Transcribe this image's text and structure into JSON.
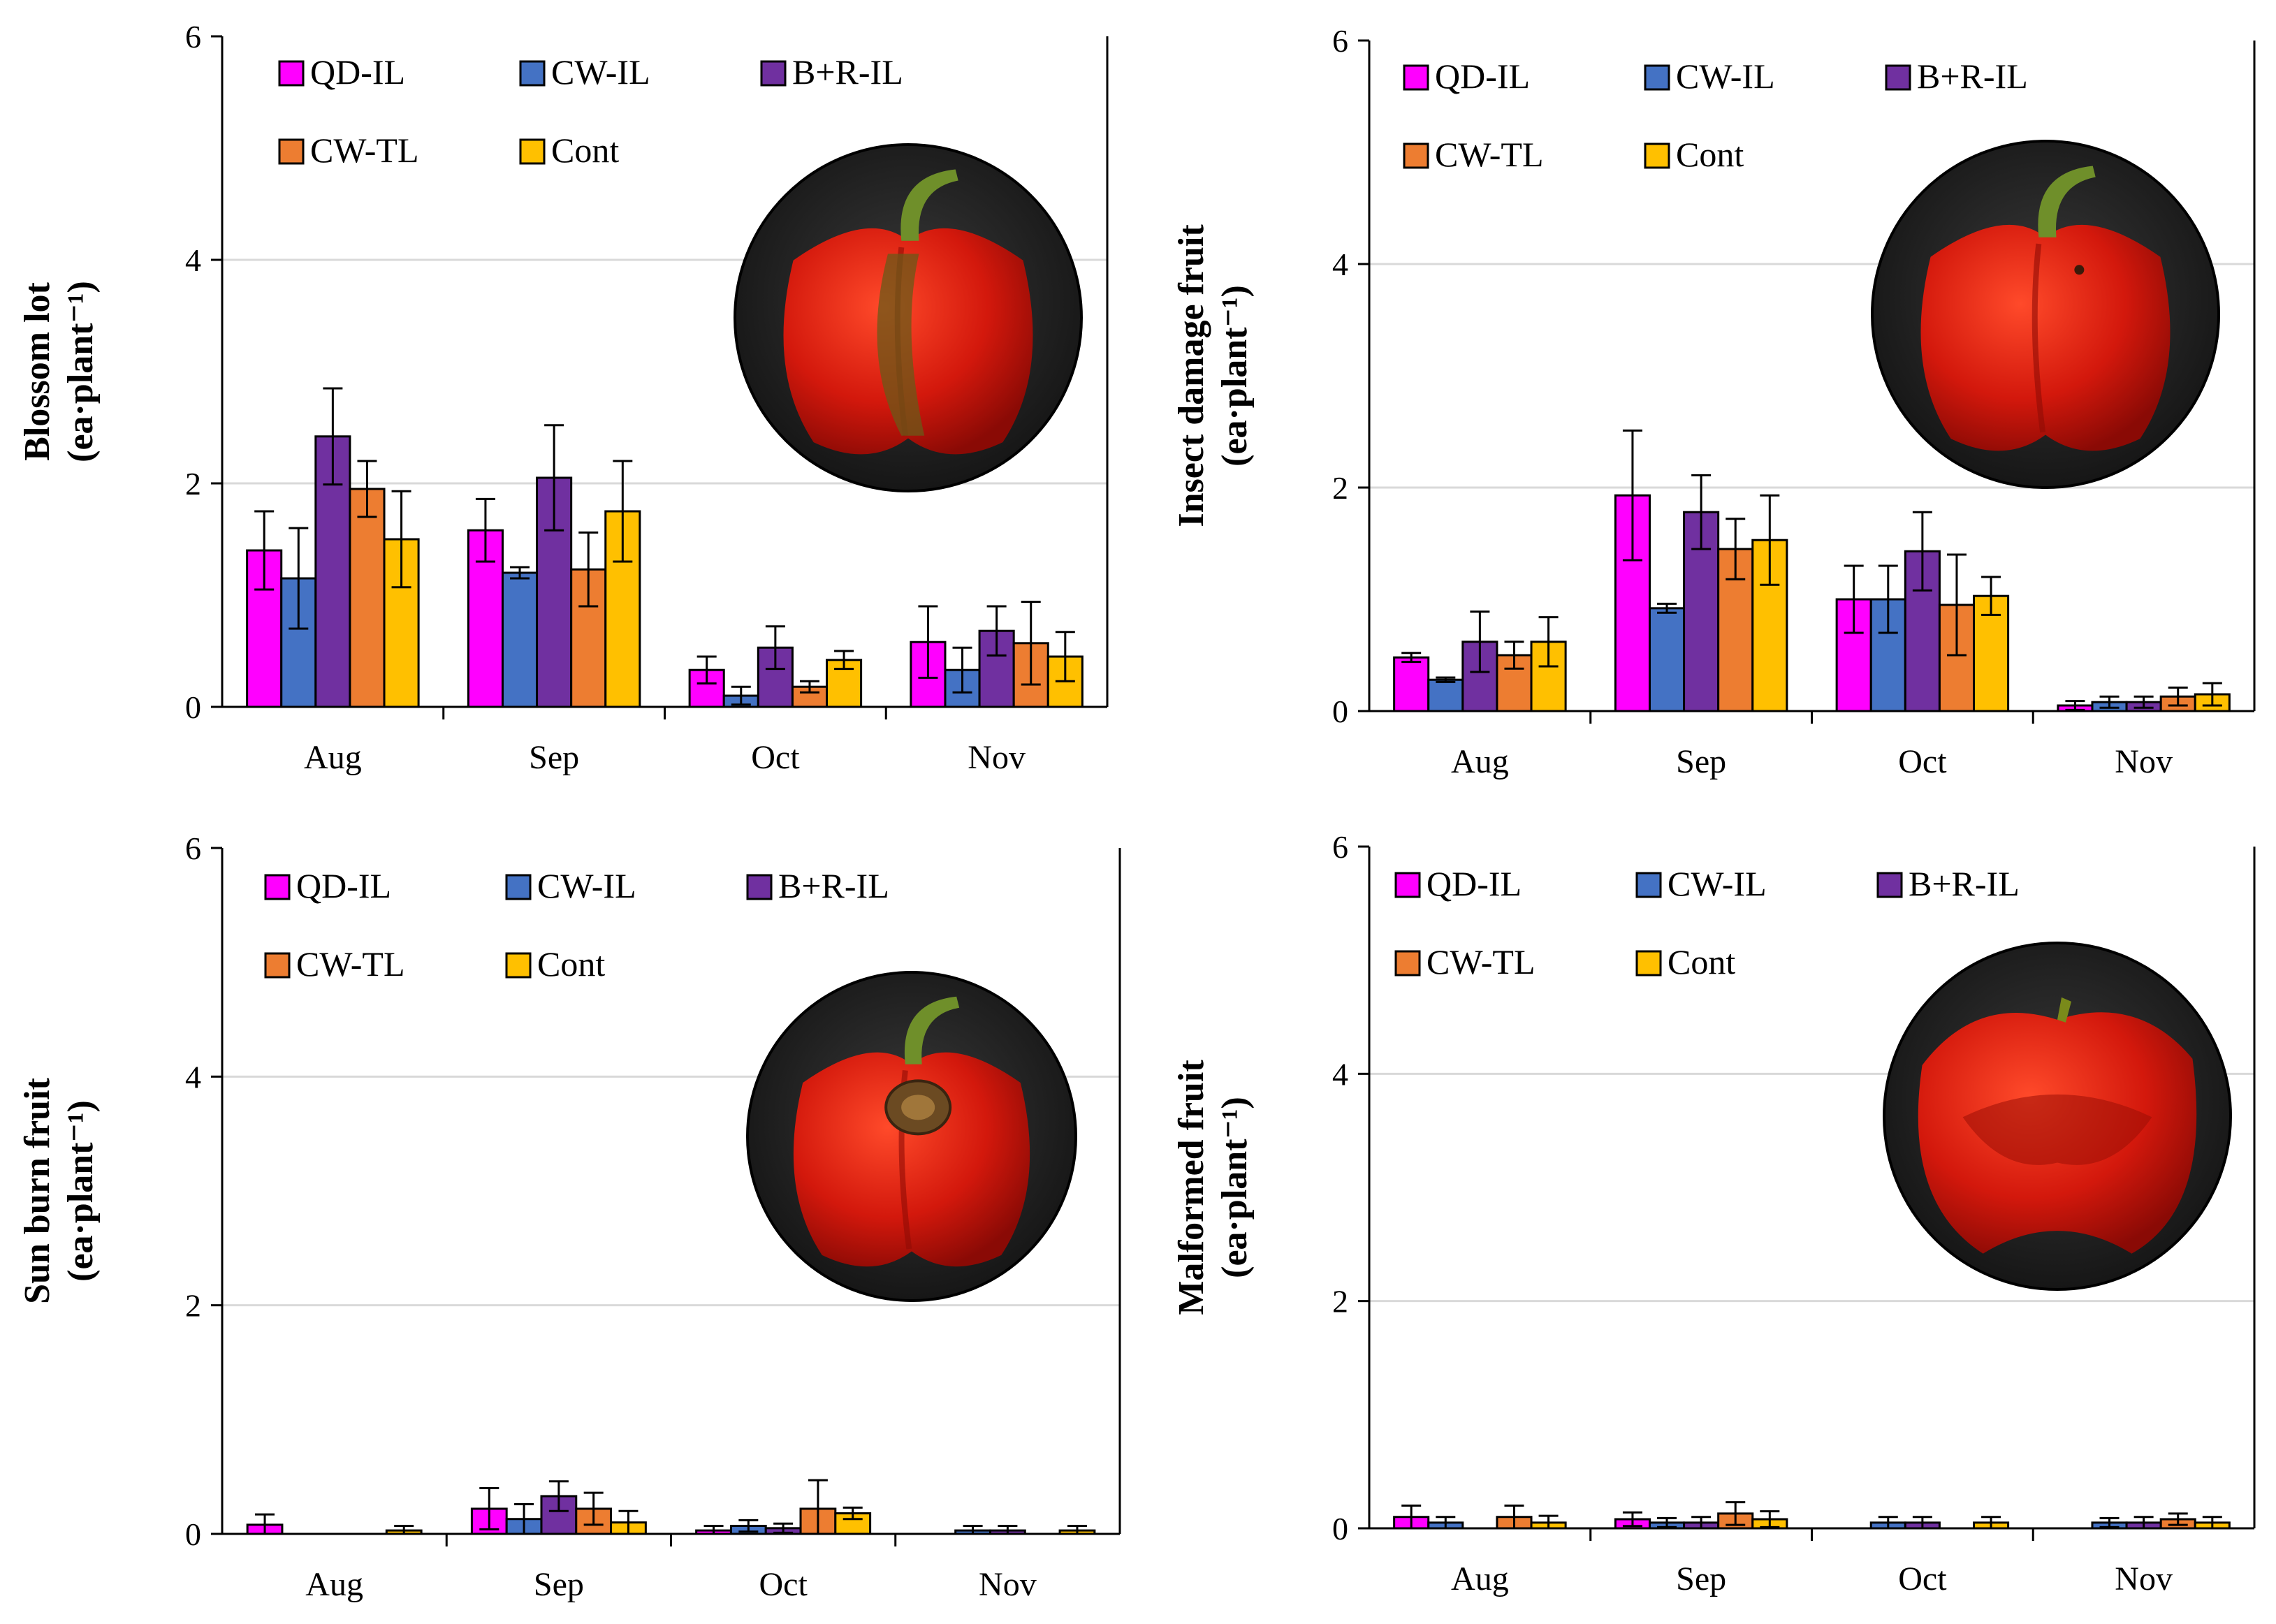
{
  "figure": {
    "legend_order": [
      "QD-IL",
      "CW-IL",
      "B+R-IL",
      "CW-TL",
      "Cont"
    ],
    "series_colors": {
      "QD-IL": "#FF00FF",
      "CW-IL": "#4472C4",
      "B+R-IL": "#7030A0",
      "CW-TL": "#ED7D31",
      "Cont": "#FFC000"
    },
    "image_icon": "red-bell-pepper-photo"
  },
  "chart_data": [
    {
      "type": "bar",
      "title": "",
      "xlabel": "",
      "ylabel_line1": "Blossom lot",
      "ylabel_line2": "(ea·plant⁻¹)",
      "ylim": [
        0,
        6
      ],
      "yticks": [
        "0",
        "2",
        "4",
        "6"
      ],
      "categories": [
        "Aug",
        "Sep",
        "Oct",
        "Nov"
      ],
      "legend": "top-left",
      "series": [
        {
          "name": "QD-IL",
          "values": [
            1.4,
            1.58,
            0.33,
            0.58
          ],
          "errors": [
            0.35,
            0.28,
            0.12,
            0.32
          ]
        },
        {
          "name": "CW-IL",
          "values": [
            1.15,
            1.2,
            0.1,
            0.33
          ],
          "errors": [
            0.45,
            0.05,
            0.08,
            0.2
          ]
        },
        {
          "name": "B+R-IL",
          "values": [
            2.42,
            2.05,
            0.53,
            0.68
          ],
          "errors": [
            0.43,
            0.47,
            0.19,
            0.22
          ]
        },
        {
          "name": "CW-TL",
          "values": [
            1.95,
            1.23,
            0.18,
            0.57
          ],
          "errors": [
            0.25,
            0.33,
            0.05,
            0.37
          ]
        },
        {
          "name": "Cont",
          "values": [
            1.5,
            1.75,
            0.42,
            0.45
          ],
          "errors": [
            0.43,
            0.45,
            0.08,
            0.22
          ]
        }
      ]
    },
    {
      "type": "bar",
      "title": "",
      "xlabel": "",
      "ylabel_line1": "Insect damage fruit",
      "ylabel_line2": "(ea·plant⁻¹)",
      "ylim": [
        0,
        6
      ],
      "yticks": [
        "0",
        "2",
        "4",
        "6"
      ],
      "categories": [
        "Aug",
        "Sep",
        "Oct",
        "Nov"
      ],
      "legend": "top-left",
      "series": [
        {
          "name": "QD-IL",
          "values": [
            0.48,
            1.93,
            1.0,
            0.05
          ],
          "errors": [
            0.04,
            0.58,
            0.3,
            0.04
          ]
        },
        {
          "name": "CW-IL",
          "values": [
            0.28,
            0.92,
            1.0,
            0.08
          ],
          "errors": [
            0.02,
            0.04,
            0.3,
            0.05
          ]
        },
        {
          "name": "B+R-IL",
          "values": [
            0.62,
            1.78,
            1.43,
            0.08
          ],
          "errors": [
            0.27,
            0.33,
            0.35,
            0.05
          ]
        },
        {
          "name": "CW-TL",
          "values": [
            0.5,
            1.45,
            0.95,
            0.13
          ],
          "errors": [
            0.12,
            0.27,
            0.45,
            0.08
          ]
        },
        {
          "name": "Cont",
          "values": [
            0.62,
            1.53,
            1.03,
            0.15
          ],
          "errors": [
            0.22,
            0.4,
            0.17,
            0.1
          ]
        }
      ]
    },
    {
      "type": "bar",
      "title": "",
      "xlabel": "",
      "ylabel_line1": "Sun burn fruit",
      "ylabel_line2": "(ea·plant⁻¹)",
      "ylim": [
        0,
        6
      ],
      "yticks": [
        "0",
        "2",
        "4",
        "6"
      ],
      "categories": [
        "Aug",
        "Sep",
        "Oct",
        "Nov"
      ],
      "legend": "top-left",
      "series": [
        {
          "name": "QD-IL",
          "values": [
            0.08,
            0.22,
            0.03,
            0.0
          ],
          "errors": [
            0.09,
            0.18,
            0.04,
            0.0
          ]
        },
        {
          "name": "CW-IL",
          "values": [
            0.0,
            0.13,
            0.07,
            0.03
          ],
          "errors": [
            0.0,
            0.13,
            0.05,
            0.04
          ]
        },
        {
          "name": "B+R-IL",
          "values": [
            0.0,
            0.33,
            0.05,
            0.03
          ],
          "errors": [
            0.0,
            0.13,
            0.04,
            0.04
          ]
        },
        {
          "name": "CW-TL",
          "values": [
            0.0,
            0.22,
            0.22,
            0.0
          ],
          "errors": [
            0.0,
            0.14,
            0.25,
            0.0
          ]
        },
        {
          "name": "Cont",
          "values": [
            0.03,
            0.1,
            0.18,
            0.03
          ],
          "errors": [
            0.04,
            0.1,
            0.05,
            0.04
          ]
        }
      ]
    },
    {
      "type": "bar",
      "title": "",
      "xlabel": "",
      "ylabel_line1": "Malformed fruit",
      "ylabel_line2": "(ea·plant⁻¹)",
      "ylim": [
        0,
        6
      ],
      "yticks": [
        "0",
        "2",
        "4",
        "6"
      ],
      "categories": [
        "Aug",
        "Sep",
        "Oct",
        "Nov"
      ],
      "legend": "top-left",
      "series": [
        {
          "name": "QD-IL",
          "values": [
            0.1,
            0.08,
            0.0,
            0.0
          ],
          "errors": [
            0.1,
            0.06,
            0.0,
            0.0
          ]
        },
        {
          "name": "CW-IL",
          "values": [
            0.05,
            0.05,
            0.05,
            0.05
          ],
          "errors": [
            0.05,
            0.04,
            0.05,
            0.04
          ]
        },
        {
          "name": "B+R-IL",
          "values": [
            0.0,
            0.05,
            0.05,
            0.05
          ],
          "errors": [
            0.0,
            0.05,
            0.05,
            0.05
          ]
        },
        {
          "name": "CW-TL",
          "values": [
            0.1,
            0.13,
            0.0,
            0.08
          ],
          "errors": [
            0.1,
            0.1,
            0.0,
            0.05
          ]
        },
        {
          "name": "Cont",
          "values": [
            0.05,
            0.08,
            0.05,
            0.05
          ],
          "errors": [
            0.06,
            0.07,
            0.05,
            0.05
          ]
        }
      ]
    }
  ]
}
